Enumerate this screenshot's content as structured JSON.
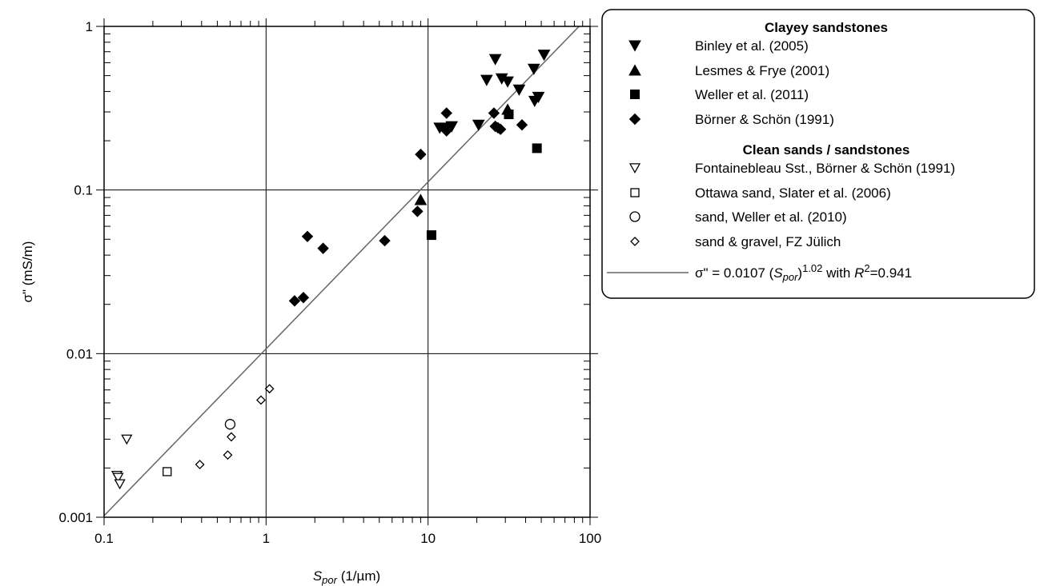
{
  "chart_data": {
    "type": "scatter",
    "x_scale": "log",
    "y_scale": "log",
    "xlim": [
      0.1,
      100
    ],
    "ylim": [
      0.001,
      1
    ],
    "grid": true,
    "legend_position": "right",
    "x_ticks": [
      "0.1",
      "1",
      "10",
      "100"
    ],
    "y_ticks": [
      "0.001",
      "0.01",
      "0.1",
      "1"
    ],
    "xlabel": {
      "main": "S",
      "sub": "por",
      "unit": " (1/µm)"
    },
    "ylabel": "σ\" (mS/m)",
    "groups": [
      {
        "heading": "Clayey sandstones"
      },
      {
        "heading": "Clean sands / sandstones"
      }
    ],
    "series": [
      {
        "name": "Binley et al. (2005)",
        "marker": "triangle-down",
        "filled": true,
        "group": 0,
        "points": [
          [
            11.8,
            0.24
          ],
          [
            14.0,
            0.245
          ],
          [
            20.5,
            0.25
          ],
          [
            23.0,
            0.47
          ],
          [
            26.0,
            0.63
          ],
          [
            28.5,
            0.48
          ],
          [
            31.0,
            0.46
          ],
          [
            36.5,
            0.41
          ],
          [
            45.0,
            0.55
          ],
          [
            45.5,
            0.35
          ],
          [
            48.0,
            0.37
          ],
          [
            52.0,
            0.67
          ]
        ]
      },
      {
        "name": "Lesmes & Frye (2001)",
        "marker": "triangle-up",
        "filled": true,
        "group": 0,
        "points": [
          [
            9.0,
            0.087
          ],
          [
            31.0,
            0.31
          ]
        ]
      },
      {
        "name": "Weller et al. (2011)",
        "marker": "square",
        "filled": true,
        "group": 0,
        "points": [
          [
            10.5,
            0.053
          ],
          [
            31.5,
            0.29
          ],
          [
            47.0,
            0.18
          ]
        ]
      },
      {
        "name": "Börner & Schön (1991)",
        "marker": "diamond",
        "filled": true,
        "group": 0,
        "points": [
          [
            1.5,
            0.021
          ],
          [
            1.7,
            0.022
          ],
          [
            1.8,
            0.052
          ],
          [
            2.25,
            0.044
          ],
          [
            5.4,
            0.049
          ],
          [
            8.6,
            0.074
          ],
          [
            9.0,
            0.165
          ],
          [
            13.0,
            0.23
          ],
          [
            13.0,
            0.24
          ],
          [
            13.0,
            0.295
          ],
          [
            25.5,
            0.295
          ],
          [
            26.0,
            0.245
          ],
          [
            27.0,
            0.24
          ],
          [
            28.0,
            0.235
          ],
          [
            38.0,
            0.25
          ]
        ]
      },
      {
        "name": "Fontainebleau Sst., Börner & Schön (1991)",
        "marker": "triangle-down",
        "filled": false,
        "group": 1,
        "points": [
          [
            0.12,
            0.0018
          ],
          [
            0.122,
            0.00175
          ],
          [
            0.125,
            0.0016
          ],
          [
            0.138,
            0.003
          ]
        ]
      },
      {
        "name": "Ottawa sand, Slater et al. (2006)",
        "marker": "square",
        "filled": false,
        "group": 1,
        "points": [
          [
            0.245,
            0.0019
          ]
        ]
      },
      {
        "name": "sand, Weller et al. (2010)",
        "marker": "circle",
        "filled": false,
        "group": 1,
        "points": [
          [
            0.6,
            0.0037
          ]
        ]
      },
      {
        "name": "sand & gravel, FZ Jülich",
        "marker": "diamond",
        "filled": false,
        "group": 1,
        "points": [
          [
            0.39,
            0.0021
          ],
          [
            0.58,
            0.0024
          ],
          [
            0.61,
            0.0031
          ],
          [
            0.93,
            0.0052
          ],
          [
            1.05,
            0.0061
          ]
        ]
      }
    ],
    "fit": {
      "coefficient": 0.0107,
      "exponent": 1.02,
      "label_prefix": "σ\" = 0.0107 (",
      "label_var": "S",
      "label_sub": "por",
      "label_close": ")",
      "label_exp": "1.02",
      "label_with": " with ",
      "label_r": "R",
      "label_r_exp": "2",
      "label_r_val": "=0.941",
      "color": "#666666"
    }
  }
}
